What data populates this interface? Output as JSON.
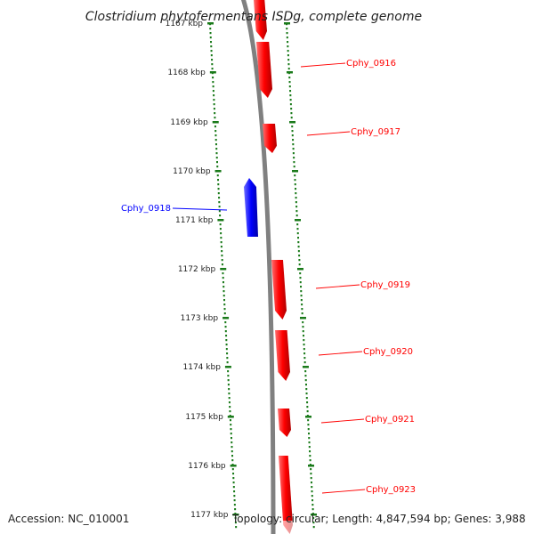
{
  "title": "Clostridium phytofermentans ISDg, complete genome",
  "footer": {
    "accession": "Accession: NC_010001",
    "topology": "Topology: circular; Length: 4,847,594 bp; Genes: 3,988"
  },
  "ticks": [
    "1167 kbp",
    "1168 kbp",
    "1169 kbp",
    "1170 kbp",
    "1171 kbp",
    "1172 kbp",
    "1173 kbp",
    "1174 kbp",
    "1175 kbp",
    "1176 kbp",
    "1177 kbp"
  ],
  "genes": [
    {
      "name": "",
      "strand": "forward",
      "color": "#ff0000"
    },
    {
      "name": "Cphy_0916",
      "strand": "forward",
      "color": "#ff0000"
    },
    {
      "name": "Cphy_0917",
      "strand": "forward",
      "color": "#ff0000"
    },
    {
      "name": "Cphy_0918",
      "strand": "reverse",
      "color": "#0000ff"
    },
    {
      "name": "Cphy_0919",
      "strand": "forward",
      "color": "#ff0000"
    },
    {
      "name": "Cphy_0920",
      "strand": "forward",
      "color": "#ff0000"
    },
    {
      "name": "Cphy_0921",
      "strand": "forward",
      "color": "#ff0000"
    },
    {
      "name": "Cphy_0923",
      "strand": "forward",
      "color": "#ff0000"
    }
  ],
  "colors": {
    "forward": "#ff0000",
    "reverse": "#0000ff",
    "backbone": "#808080",
    "tick": "#1a7a1a"
  }
}
